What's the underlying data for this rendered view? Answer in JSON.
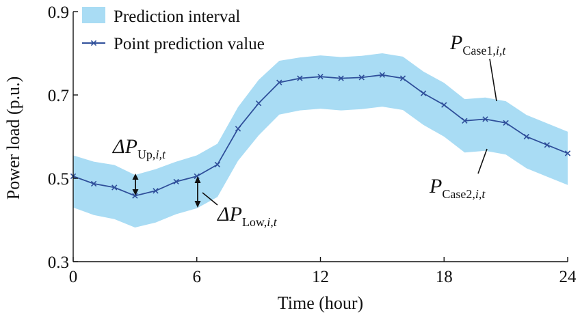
{
  "chart_data": {
    "type": "line",
    "title": "",
    "xlabel": "Time (hour)",
    "ylabel": "Power load (p.u.)",
    "xlim": [
      0,
      24
    ],
    "ylim": [
      0.3,
      0.9
    ],
    "xticks": [
      "0",
      "6",
      "12",
      "18",
      "24"
    ],
    "yticks": [
      "0.3",
      "0.5",
      "0.7",
      "0.9"
    ],
    "grid": false,
    "legend_placement": "top-left",
    "colors": {
      "band": "#a9dcf4",
      "line": "#2f4f9a"
    },
    "x": [
      0,
      1,
      2,
      3,
      4,
      5,
      6,
      7,
      8,
      9,
      10,
      11,
      12,
      13,
      14,
      15,
      16,
      17,
      18,
      19,
      20,
      21,
      22,
      23,
      24
    ],
    "series": [
      {
        "name": "Point prediction value",
        "kind": "line",
        "values": [
          0.505,
          0.487,
          0.478,
          0.458,
          0.47,
          0.492,
          0.505,
          0.533,
          0.619,
          0.68,
          0.73,
          0.74,
          0.744,
          0.74,
          0.742,
          0.748,
          0.74,
          0.704,
          0.676,
          0.638,
          0.642,
          0.633,
          0.6,
          0.58,
          0.56
        ]
      },
      {
        "name": "Prediction interval",
        "kind": "band",
        "lower": [
          0.43,
          0.412,
          0.402,
          0.382,
          0.394,
          0.414,
          0.428,
          0.455,
          0.542,
          0.603,
          0.653,
          0.663,
          0.667,
          0.663,
          0.666,
          0.672,
          0.664,
          0.628,
          0.6,
          0.562,
          0.566,
          0.557,
          0.524,
          0.504,
          0.484
        ],
        "upper": [
          0.555,
          0.54,
          0.532,
          0.508,
          0.522,
          0.54,
          0.555,
          0.583,
          0.671,
          0.736,
          0.782,
          0.79,
          0.795,
          0.791,
          0.794,
          0.8,
          0.792,
          0.756,
          0.729,
          0.69,
          0.694,
          0.685,
          0.652,
          0.632,
          0.612
        ]
      }
    ],
    "annotations": {
      "delta_up": {
        "prefix": "ΔP",
        "sub": "Up,",
        "sub_italic": "i,t",
        "at_x": 3
      },
      "delta_low": {
        "prefix": "ΔP",
        "sub": "Low,",
        "sub_italic": "i,t",
        "at_x": 6
      },
      "p_case1": {
        "prefix": "P",
        "sub": "Case1,",
        "sub_italic": "i,t",
        "at_x": 20.5
      },
      "p_case2": {
        "prefix": "P",
        "sub": "Case2,",
        "sub_italic": "i,t",
        "at_x": 20
      }
    }
  }
}
